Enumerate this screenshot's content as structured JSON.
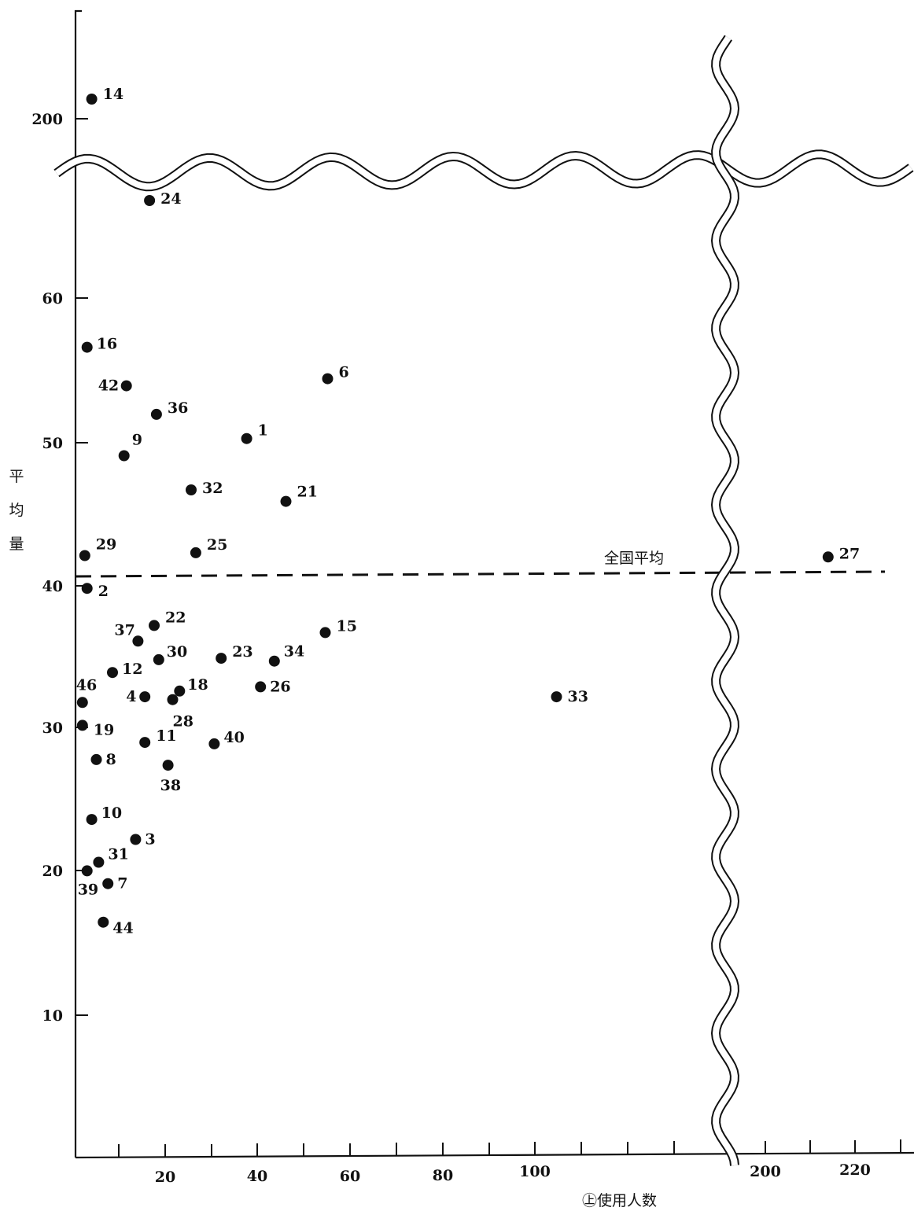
{
  "chart_data": {
    "type": "scatter",
    "xlabel": "㊤使用人数",
    "ylabel": "平均量",
    "x_ticks": [
      "20",
      "40",
      "60",
      "80",
      "100",
      "200",
      "220"
    ],
    "y_ticks": [
      "10",
      "20",
      "30",
      "40",
      "50",
      "60",
      "200"
    ],
    "reference_line": {
      "label": "全国平均",
      "value": 40.7
    },
    "axis_breaks": {
      "x": "between 100 and 200",
      "y": "between 60 and 200"
    },
    "points": [
      {
        "label": "14",
        "x": 3.5,
        "y": 205
      },
      {
        "label": "24",
        "x": 16,
        "y": 70
      },
      {
        "label": "16",
        "x": 2.5,
        "y": 56.8
      },
      {
        "label": "42",
        "x": 11,
        "y": 54.1
      },
      {
        "label": "6",
        "x": 54.5,
        "y": 54.6
      },
      {
        "label": "36",
        "x": 17.5,
        "y": 52.1
      },
      {
        "label": "1",
        "x": 37,
        "y": 50.4
      },
      {
        "label": "9",
        "x": 10.5,
        "y": 49.2
      },
      {
        "label": "32",
        "x": 25,
        "y": 46.8
      },
      {
        "label": "21",
        "x": 45.5,
        "y": 46
      },
      {
        "label": "29",
        "x": 2,
        "y": 42.2
      },
      {
        "label": "25",
        "x": 26,
        "y": 42.4
      },
      {
        "label": "27",
        "x": 214,
        "y": 42.1
      },
      {
        "label": "2",
        "x": 2.5,
        "y": 39.9
      },
      {
        "label": "22",
        "x": 17,
        "y": 37.3
      },
      {
        "label": "37",
        "x": 13.5,
        "y": 36.2
      },
      {
        "label": "15",
        "x": 54,
        "y": 36.8
      },
      {
        "label": "30",
        "x": 18,
        "y": 34.9
      },
      {
        "label": "23",
        "x": 31.5,
        "y": 35
      },
      {
        "label": "34",
        "x": 43,
        "y": 34.8
      },
      {
        "label": "12",
        "x": 8,
        "y": 34
      },
      {
        "label": "46",
        "x": 1.5,
        "y": 31.9
      },
      {
        "label": "4",
        "x": 15,
        "y": 32.3
      },
      {
        "label": "18",
        "x": 22.5,
        "y": 32.7
      },
      {
        "label": "28",
        "x": 21,
        "y": 32.1
      },
      {
        "label": "26",
        "x": 40,
        "y": 33
      },
      {
        "label": "33",
        "x": 104,
        "y": 32.3
      },
      {
        "label": "19",
        "x": 1.5,
        "y": 30.3
      },
      {
        "label": "11",
        "x": 15,
        "y": 29.1
      },
      {
        "label": "40",
        "x": 30,
        "y": 29
      },
      {
        "label": "8",
        "x": 4.5,
        "y": 27.9
      },
      {
        "label": "38",
        "x": 20,
        "y": 27.5
      },
      {
        "label": "10",
        "x": 3.5,
        "y": 23.7
      },
      {
        "label": "3",
        "x": 13,
        "y": 22.3
      },
      {
        "label": "31",
        "x": 5,
        "y": 20.7
      },
      {
        "label": "39",
        "x": 2.5,
        "y": 20.1
      },
      {
        "label": "7",
        "x": 7,
        "y": 19.2
      },
      {
        "label": "44",
        "x": 6,
        "y": 16.5
      }
    ]
  }
}
